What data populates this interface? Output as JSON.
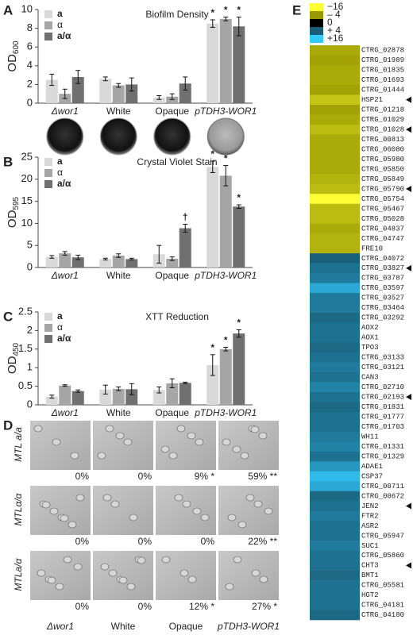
{
  "chart_data": [
    {
      "type": "bar",
      "panel": "A",
      "title": "Biofilm Density",
      "ylabel": "OD",
      "ylabel_sub": "600",
      "categories": [
        "Δwor1",
        "White",
        "Opaque",
        "pTDH3-WOR1"
      ],
      "series": [
        {
          "name": "a",
          "color": "#d9d9d9",
          "values": [
            2.5,
            2.6,
            0.6,
            8.5
          ],
          "errors": [
            0.6,
            0.2,
            0.2,
            0.4
          ],
          "markers": [
            null,
            null,
            null,
            "*"
          ]
        },
        {
          "name": "α",
          "color": "#a6a6a6",
          "values": [
            1.0,
            1.9,
            0.7,
            9.0
          ],
          "errors": [
            0.5,
            0.2,
            0.3,
            0.2
          ],
          "markers": [
            null,
            null,
            null,
            "*"
          ]
        },
        {
          "name": "a/α",
          "color": "#707070",
          "values": [
            2.8,
            2.0,
            2.1,
            8.2
          ],
          "errors": [
            0.7,
            0.7,
            0.7,
            1.0
          ],
          "markers": [
            null,
            null,
            null,
            "*"
          ]
        }
      ],
      "ylim": [
        0,
        10
      ],
      "yticks": [
        0,
        2,
        4,
        6,
        8,
        10
      ],
      "legend": "upper left"
    },
    {
      "type": "bar",
      "panel": "B",
      "title": "Crystal Violet Stain",
      "ylabel": "OD",
      "ylabel_sub": "595",
      "categories": [
        "Δwor1",
        "White",
        "Opaque",
        "pTDH3-WOR1"
      ],
      "series": [
        {
          "name": "a",
          "color": "#d9d9d9",
          "values": [
            2.4,
            1.9,
            3.0,
            22.8
          ],
          "errors": [
            0.3,
            0.2,
            2.0,
            1.3
          ],
          "markers": [
            null,
            null,
            null,
            "*"
          ]
        },
        {
          "name": "α",
          "color": "#a6a6a6",
          "values": [
            3.2,
            2.7,
            2.0,
            20.8
          ],
          "errors": [
            0.4,
            0.4,
            0.4,
            2.3
          ],
          "markers": [
            null,
            null,
            null,
            "*"
          ]
        },
        {
          "name": "a/α",
          "color": "#707070",
          "values": [
            2.3,
            1.9,
            8.9,
            13.8
          ],
          "errors": [
            0.5,
            0.2,
            0.9,
            0.4
          ],
          "markers": [
            null,
            null,
            "†",
            "*"
          ]
        }
      ],
      "ylim": [
        0,
        25
      ],
      "yticks": [
        0,
        5,
        10,
        15,
        20,
        25
      ],
      "legend": "upper left"
    },
    {
      "type": "bar",
      "panel": "C",
      "title": "XTT Reduction",
      "ylabel": "OD",
      "ylabel_sub": "450",
      "categories": [
        "Δwor1",
        "White",
        "Opaque",
        "pTDH3-WOR1"
      ],
      "series": [
        {
          "name": "a",
          "color": "#d9d9d9",
          "values": [
            0.22,
            0.41,
            0.4,
            1.07
          ],
          "errors": [
            0.04,
            0.12,
            0.08,
            0.28
          ],
          "markers": [
            null,
            null,
            null,
            "*"
          ]
        },
        {
          "name": "α",
          "color": "#a6a6a6",
          "values": [
            0.52,
            0.43,
            0.58,
            1.5
          ],
          "errors": [
            0.02,
            0.05,
            0.12,
            0.05
          ],
          "markers": [
            null,
            null,
            null,
            "*"
          ]
        },
        {
          "name": "a/α",
          "color": "#707070",
          "values": [
            0.37,
            0.42,
            0.59,
            1.92
          ],
          "errors": [
            0.03,
            0.15,
            0.02,
            0.1
          ],
          "markers": [
            null,
            null,
            null,
            "*"
          ]
        }
      ],
      "ylim": [
        0,
        2.5
      ],
      "yticks": [
        0,
        0.5,
        1,
        1.5,
        2,
        2.5
      ],
      "legend": "upper left"
    },
    {
      "type": "heatmap",
      "panel": "E",
      "colorbar": [
        {
          "value": -16,
          "label": "−16",
          "color": "#ffff33"
        },
        {
          "value": -4,
          "label": "– 4",
          "color": "#999900"
        },
        {
          "value": 0,
          "label": "0",
          "color": "#000000"
        },
        {
          "value": 4,
          "label": "+ 4",
          "color": "#1a5f7a"
        },
        {
          "value": 16,
          "label": "+16",
          "color": "#33ccff"
        }
      ],
      "categories": [
        "CTRG_02878",
        "CTRG_01989",
        "CTRG_01835",
        "CTRG_01693",
        "CTRG_01444",
        "HSP21",
        "CTRG_01218",
        "CTRG_01029",
        "CTRG_01028",
        "CTRG_00813",
        "CTRG_06080",
        "CTRG_05980",
        "CTRG_05850",
        "CTRG_05849",
        "CTRG_05790",
        "CTRG_05754",
        "CTRG_05467",
        "CTRG_05028",
        "CTRG_04837",
        "CTRG_04747",
        "FRE10",
        "CTRG_04072",
        "CTRG_03827",
        "CTRG_03787",
        "CTRG_03597",
        "CTRG_03527",
        "CTRG_03464",
        "CTRG_03292",
        "AOX2",
        "AOX1",
        "TPO3",
        "CTRG_03133",
        "CTRG_03121",
        "CAN3",
        "CTRG_02710",
        "CTRG_02193",
        "CTRG_01831",
        "CTRG_01777",
        "CTRG_01703",
        "WH11",
        "CTRG_01331",
        "CTRG_01329",
        "ADAE1",
        "CSP37",
        "CTRG_00711",
        "CTRG_00672",
        "JEN2",
        "FTR2",
        "ASR2",
        "CTRG_05947",
        "SUC1",
        "CTRG_05860",
        "CHT3",
        "BMT1",
        "CTRG_05581",
        "HGT2",
        "CTRG_04181",
        "CTRG_04180"
      ],
      "values": [
        -6,
        -5,
        -6,
        -6,
        -5,
        -9,
        -5,
        -6,
        -8,
        -6,
        -6,
        -6,
        -6,
        -7,
        -8,
        -16,
        -8,
        -8,
        -6,
        -7,
        -7,
        4,
        6,
        7,
        12,
        7,
        7,
        5,
        6,
        6,
        5,
        6,
        7,
        6,
        8,
        6,
        5,
        6,
        6,
        7,
        8,
        6,
        10,
        14,
        12,
        5,
        6,
        7,
        6,
        6,
        7,
        6,
        6,
        5,
        6,
        6,
        6,
        5
      ],
      "marked": [
        "HSP21",
        "CTRG_01028",
        "CTRG_05790",
        "CTRG_03827",
        "CTRG_02193",
        "JEN2",
        "CHT3"
      ]
    }
  ],
  "micrographs": {
    "panel": "D",
    "columns": [
      "Δwor1",
      "White",
      "Opaque",
      "pTDH3-WOR1"
    ],
    "rows": [
      {
        "label": "MTL a/a",
        "cells": [
          "0%",
          "0%",
          "9% *",
          "59% **"
        ]
      },
      {
        "label": "MTLα/α",
        "cells": [
          "0%",
          "0%",
          "0%",
          "22% **"
        ]
      },
      {
        "label": "MTLa/α",
        "cells": [
          "0%",
          "0%",
          "12% *",
          "27% *"
        ]
      }
    ]
  }
}
